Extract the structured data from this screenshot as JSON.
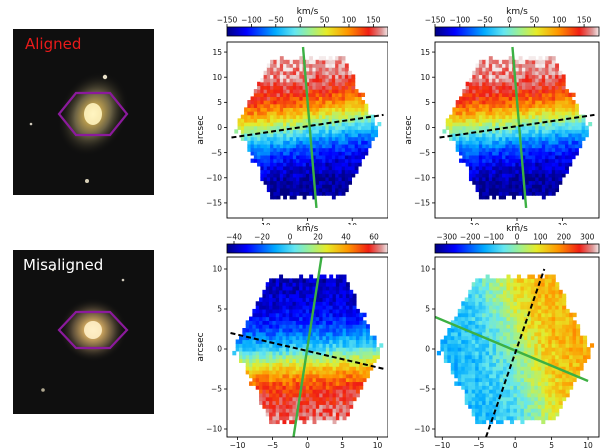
{
  "labels": {
    "aligned": "Aligned",
    "misaligned": "Misaligned",
    "aligned_color": "#e81a1a",
    "misaligned_color": "#ffffff"
  },
  "colors": {
    "hexagon": "#8b1a9c",
    "pa_line_kinematic": "#3cb043",
    "pa_line_photometric": "#000000"
  },
  "chart_data": [
    {
      "type": "heatmap",
      "panel": "aligned-stellar",
      "title": "",
      "xlabel": "arcsec",
      "ylabel": "arcsec",
      "cbar_label": "km/s",
      "xlim": [
        -18,
        18
      ],
      "ylim": [
        -18,
        17
      ],
      "xticks": [
        "−10",
        "0",
        "10"
      ],
      "xtick_values": [
        -10,
        0,
        10
      ],
      "yticks": [
        "−15",
        "−10",
        "−5",
        "0",
        "5",
        "10",
        "15"
      ],
      "ytick_values": [
        -15,
        -10,
        -5,
        0,
        5,
        10,
        15
      ],
      "cbar_range": [
        -150,
        180
      ],
      "cbar_ticks": [
        "−150",
        "−100",
        "−50",
        "0",
        "50",
        "100",
        "150"
      ],
      "cbar_tick_values": [
        -150,
        -100,
        -50,
        0,
        50,
        100,
        150
      ],
      "field_shape": "hexagon",
      "field_radius": 16,
      "pa_black": [
        [
          -17,
          -2
        ],
        [
          17,
          2.5
        ]
      ],
      "pa_green": [
        [
          -1,
          16
        ],
        [
          2,
          -16
        ]
      ],
      "velocity_axis_deg": 97,
      "vmax_field": 175,
      "vmin_field": -150
    },
    {
      "type": "heatmap",
      "panel": "aligned-gas",
      "title": "",
      "xlabel": "",
      "ylabel": "arcsec",
      "cbar_label": "km/s",
      "xlim": [
        -18,
        18
      ],
      "ylim": [
        -18,
        17
      ],
      "xticks": [
        "−10",
        "0",
        "10"
      ],
      "xtick_values": [
        -10,
        0,
        10
      ],
      "yticks": [
        "−15",
        "−10",
        "−5",
        "0",
        "5",
        "10",
        "15"
      ],
      "ytick_values": [
        -15,
        -10,
        -5,
        0,
        5,
        10,
        15
      ],
      "cbar_range": [
        -150,
        180
      ],
      "cbar_ticks": [
        "−150",
        "−100",
        "−50",
        "0",
        "50",
        "100",
        "150"
      ],
      "cbar_tick_values": [
        -150,
        -100,
        -50,
        0,
        50,
        100,
        150
      ],
      "field_shape": "hexagon",
      "field_radius": 16,
      "pa_black": [
        [
          -17,
          -2
        ],
        [
          17,
          2.5
        ]
      ],
      "pa_green": [
        [
          -1,
          16
        ],
        [
          2,
          -16
        ]
      ],
      "velocity_axis_deg": 95,
      "vmax_field": 175,
      "vmin_field": -150
    },
    {
      "type": "heatmap",
      "panel": "misaligned-stellar",
      "title": "",
      "xlabel": "arcsec",
      "ylabel": "arcsec",
      "cbar_label": "km/s",
      "xlim": [
        -11.5,
        11.5
      ],
      "ylim": [
        -11,
        11.5
      ],
      "xticks": [
        "−10",
        "−5",
        "0",
        "5",
        "10"
      ],
      "xtick_values": [
        -10,
        -5,
        0,
        5,
        10
      ],
      "yticks": [
        "−10",
        "−5",
        "0",
        "5",
        "10"
      ],
      "ytick_values": [
        -10,
        -5,
        0,
        5,
        10
      ],
      "cbar_range": [
        -45,
        70
      ],
      "cbar_ticks": [
        "−40",
        "−20",
        "0",
        "20",
        "40",
        "60"
      ],
      "cbar_tick_values": [
        -40,
        -20,
        0,
        20,
        40,
        60
      ],
      "field_shape": "hexagon",
      "field_radius": 10.5,
      "pa_black": [
        [
          -11,
          2
        ],
        [
          11,
          -2.5
        ]
      ],
      "pa_green": [
        [
          2,
          11.5
        ],
        [
          -2,
          -11
        ]
      ],
      "velocity_axis_deg": -88,
      "vmax_field": 65,
      "vmin_field": -40
    },
    {
      "type": "heatmap",
      "panel": "misaligned-gas",
      "title": "",
      "xlabel": "arcsec",
      "ylabel": "",
      "cbar_label": "km/s",
      "xlim": [
        -11,
        11.5
      ],
      "ylim": [
        -11,
        11.5
      ],
      "xticks": [
        "−10",
        "−5",
        "0",
        "5",
        "10"
      ],
      "xtick_values": [
        -10,
        -5,
        0,
        5,
        10
      ],
      "yticks": [
        "−10",
        "−5",
        "0",
        "5",
        "10"
      ],
      "ytick_values": [
        -10,
        -5,
        0,
        5,
        10
      ],
      "cbar_range": [
        -350,
        350
      ],
      "cbar_ticks": [
        "−300",
        "−200",
        "−100",
        "0",
        "100",
        "200",
        "300"
      ],
      "cbar_tick_values": [
        -300,
        -200,
        -100,
        0,
        100,
        200,
        300
      ],
      "field_shape": "hexagon",
      "field_radius": 10.5,
      "pa_black": [
        [
          -4,
          -11
        ],
        [
          4,
          10
        ]
      ],
      "pa_green": [
        [
          -11,
          4
        ],
        [
          10,
          -4
        ]
      ],
      "velocity_axis_deg": 20,
      "vmax_field": 150,
      "vmin_field": -120
    }
  ]
}
